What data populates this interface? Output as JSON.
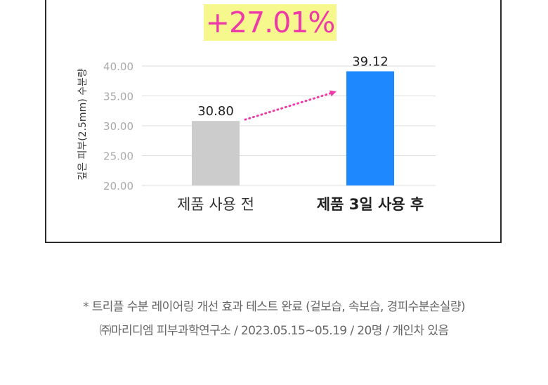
{
  "highlight": {
    "text": "+27.01%"
  },
  "chart_data": {
    "type": "bar",
    "categories": [
      "제품 사용 전",
      "제품 3일 사용 후"
    ],
    "values": [
      30.8,
      39.12
    ],
    "value_labels": [
      "30.80",
      "39.12"
    ],
    "ylabel": "깊은 피부(2.5mm) 수분량",
    "ylim": [
      20,
      40
    ],
    "yticks": [
      20,
      25,
      30,
      35,
      40
    ],
    "ytick_labels": [
      "20.00",
      "25.00",
      "30.00",
      "35.00",
      "40.00"
    ],
    "bar_colors": [
      "#cccccc",
      "#1e88ff"
    ],
    "arrow_color": "#ee3aa9",
    "grid": true
  },
  "footnotes": {
    "line1": "* 트리플 수분 레이어링 개선 효과 테스트 완료 (겉보습, 속보습, 경피수분손실량)",
    "line2": "㈜마리디엠 피부과학연구소 / 2023.05.15~05.19 / 20명 / 개인차 있음"
  }
}
